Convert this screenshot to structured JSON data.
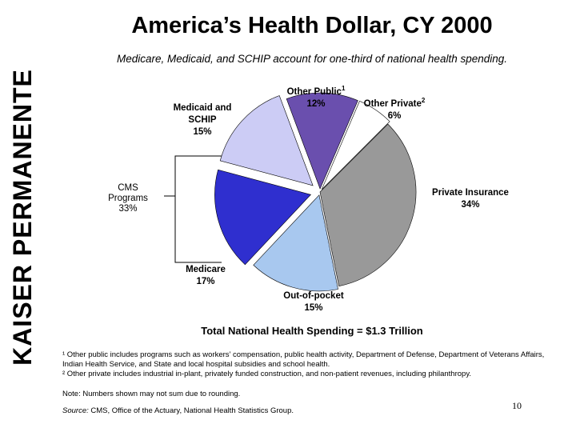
{
  "brand": "KAISER PERMANENTE",
  "title": "America’s Health Dollar, CY 2000",
  "subtitle": "Medicare, Medicaid, and SCHIP account for one-third of national health spending.",
  "chart_data": {
    "type": "pie",
    "slices": [
      {
        "name": "Medicaid and SCHIP",
        "value": 15,
        "label": "15%",
        "color": "#ccccf5"
      },
      {
        "name": "Other Public",
        "sup": "1",
        "value": 12,
        "label": "12%",
        "color": "#6a4fae"
      },
      {
        "name": "Other Private",
        "sup": "2",
        "value": 6,
        "label": "6%",
        "color": "#ffffff"
      },
      {
        "name": "Private Insurance",
        "value": 34,
        "label": "34%",
        "color": "#999999"
      },
      {
        "name": "Out-of-pocket",
        "value": 15,
        "label": "15%",
        "color": "#a8c8ef"
      },
      {
        "name": "Medicare",
        "value": 17,
        "label": "17%",
        "color": "#2f2fcf"
      }
    ],
    "group": {
      "name": "CMS Programs",
      "label": "33%"
    }
  },
  "total_label": "Total National Health Spending = $1.3 Trillion",
  "footnotes": [
    "¹ Other public includes programs such as workers’ compensation, public health activity, Department of Defense, Department of Veterans Affairs, Indian Health Service, and State and local hospital subsidies and school health.",
    "² Other private includes industrial in-plant, privately funded construction, and non-patient revenues, including philanthropy."
  ],
  "note": "Note: Numbers shown may not sum due to rounding.",
  "source": {
    "prefix": "Source:",
    "text": " CMS, Office of the Actuary, National Health Statistics Group."
  },
  "page_number": "10"
}
